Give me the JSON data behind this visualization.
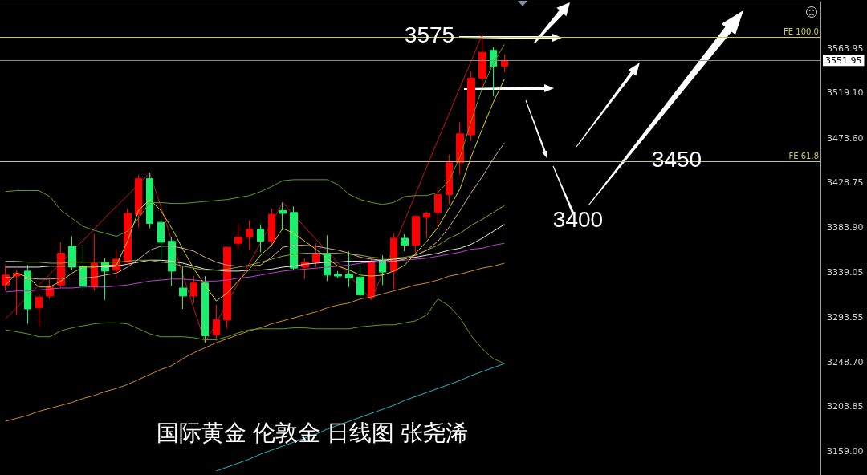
{
  "chart_data": {
    "type": "candlestick",
    "categories": [
      null,
      null,
      null,
      null,
      null,
      null,
      null,
      null,
      null,
      null,
      null,
      null,
      null,
      null,
      null,
      null,
      null,
      null,
      null,
      null,
      null,
      null,
      null,
      null,
      null,
      null,
      null,
      null,
      null,
      null,
      null,
      null,
      null,
      null,
      null,
      null,
      null,
      null,
      null,
      null,
      null,
      null,
      null,
      null,
      null,
      null
    ],
    "ohlc": [
      [
        3326,
        3346,
        3320,
        3336
      ],
      [
        3335,
        3342,
        3296,
        3338
      ],
      [
        3340,
        3346,
        3287,
        3302
      ],
      [
        3303,
        3317,
        3284,
        3314
      ],
      [
        3315,
        3331,
        3312,
        3324
      ],
      [
        3326,
        3369,
        3323,
        3358
      ],
      [
        3365,
        3375,
        3341,
        3344
      ],
      [
        3345,
        3367,
        3320,
        3325
      ],
      [
        3324,
        3377,
        3320,
        3348
      ],
      [
        3349,
        3353,
        3311,
        3340
      ],
      [
        3341,
        3362,
        3333,
        3352
      ],
      [
        3349,
        3403,
        3348,
        3398
      ],
      [
        3397,
        3437,
        3384,
        3433
      ],
      [
        3433,
        3439,
        3383,
        3388
      ],
      [
        3389,
        3394,
        3352,
        3369
      ],
      [
        3370,
        3374,
        3325,
        3340
      ],
      [
        3323,
        3345,
        3302,
        3315
      ],
      [
        3315,
        3335,
        3308,
        3328
      ],
      [
        3328,
        3335,
        3268,
        3275
      ],
      [
        3276,
        3306,
        3270,
        3291
      ],
      [
        3291,
        3365,
        3282,
        3364
      ],
      [
        3368,
        3387,
        3362,
        3374
      ],
      [
        3374,
        3391,
        3361,
        3382
      ],
      [
        3382,
        3387,
        3359,
        3370
      ],
      [
        3370,
        3403,
        3365,
        3397
      ],
      [
        3401,
        3409,
        3381,
        3398
      ],
      [
        3399,
        3405,
        3341,
        3343
      ],
      [
        3344,
        3353,
        3332,
        3349
      ],
      [
        3349,
        3368,
        3344,
        3357
      ],
      [
        3358,
        3376,
        3330,
        3336
      ],
      [
        3337,
        3340,
        3333,
        3335
      ],
      [
        3337,
        3360,
        3324,
        3333
      ],
      [
        3334,
        3346,
        3315,
        3316
      ],
      [
        3314,
        3353,
        3311,
        3349
      ],
      [
        3351,
        3356,
        3326,
        3339
      ],
      [
        3340,
        3378,
        3322,
        3373
      ],
      [
        3373,
        3377,
        3360,
        3366
      ],
      [
        3366,
        3396,
        3356,
        3395
      ],
      [
        3394,
        3400,
        3373,
        3398
      ],
      [
        3399,
        3424,
        3385,
        3417
      ],
      [
        3417,
        3457,
        3407,
        3449
      ],
      [
        3449,
        3490,
        3437,
        3478
      ],
      [
        3477,
        3541,
        3471,
        3534
      ],
      [
        3534,
        3578,
        3526,
        3560
      ],
      [
        3562,
        3565,
        3516,
        3546
      ],
      [
        3546,
        3558,
        3540,
        3551.95
      ]
    ],
    "colors": [
      "#ff0000",
      "#ff0000",
      "#19f06e",
      "#ff0000",
      "#ff0000",
      "#ff0000",
      "#19f06e",
      "#19f06e",
      "#ff0000",
      "#19f06e",
      "#ff0000",
      "#ff0000",
      "#ff0000",
      "#19f06e",
      "#19f06e",
      "#19f06e",
      "#19f06e",
      "#ff0000",
      "#19f06e",
      "#ff0000",
      "#ff0000",
      "#ff0000",
      "#ff0000",
      "#19f06e",
      "#ff0000",
      "#19f06e",
      "#19f06e",
      "#ff0000",
      "#ff0000",
      "#19f06e",
      "#19f06e",
      "#19f06e",
      "#19f06e",
      "#ff0000",
      "#19f06e",
      "#ff0000",
      "#19f06e",
      "#ff0000",
      "#ff0000",
      "#ff0000",
      "#ff0000",
      "#ff0000",
      "#ff0000",
      "#ff0000",
      "#19f06e",
      "#ff0000"
    ],
    "series": [
      {
        "type": "line",
        "color": "#20b8c8",
        "values": [
          null,
          null,
          null,
          null,
          null,
          null,
          null,
          null,
          null,
          null,
          null,
          null,
          null,
          null,
          null,
          null,
          null,
          null,
          null,
          3139,
          3143,
          3147,
          3151,
          3156,
          3160,
          3164,
          3168,
          3172,
          3176,
          3181,
          3185,
          3189,
          3193,
          3197,
          3201,
          3205,
          3210,
          3214,
          3218,
          3222,
          3226,
          3230,
          3235,
          3239,
          3243,
          3247
        ]
      },
      {
        "type": "line",
        "color": "#d08a30",
        "values": [
          3189,
          3192,
          3195,
          3199,
          3202,
          3205,
          3208,
          3212,
          3215,
          3219,
          3222,
          3226,
          3231,
          3236,
          3241,
          3245,
          3252,
          3258,
          3263,
          3268,
          3272,
          3276,
          3280,
          3283,
          3287,
          3290,
          3293,
          3296,
          3299,
          3303,
          3306,
          3308,
          3312,
          3314,
          3317,
          3320,
          3323,
          3326,
          3328,
          3331,
          3335,
          3337,
          3340,
          3343,
          3345,
          3348
        ]
      },
      {
        "type": "line",
        "color": "#c040d0",
        "values": [
          3319,
          3320,
          3320,
          3321,
          3322,
          3323,
          3323,
          3324,
          3324,
          3324,
          3325,
          3326,
          3328,
          3330,
          3331,
          3332,
          3332,
          3331,
          3330,
          3330,
          3331,
          3333,
          3334,
          3336,
          3338,
          3340,
          3341,
          3342,
          3343,
          3344,
          3345,
          3346,
          3348,
          3349,
          3349,
          3350,
          3351,
          3352,
          3353,
          3355,
          3357,
          3359,
          3362,
          3363,
          3366,
          3368
        ]
      },
      {
        "type": "line",
        "color": "#e8e8e8",
        "values": [
          3344,
          3344,
          3344,
          3344,
          3345,
          3345,
          3345,
          3345,
          3345,
          3344,
          3345,
          3347,
          3349,
          3351,
          3351,
          3350,
          3348,
          3345,
          3342,
          3341,
          3340,
          3340,
          3341,
          3341,
          3342,
          3344,
          3345,
          3347,
          3348,
          3349,
          3349,
          3350,
          3350,
          3350,
          3351,
          3352,
          3353,
          3354,
          3356,
          3358,
          3361,
          3363,
          3367,
          3373,
          3380,
          3387
        ]
      },
      {
        "type": "line",
        "color": "#8aa82a",
        "values": [
          3350,
          3350,
          3349,
          3349,
          3348,
          3348,
          3349,
          3349,
          3349,
          3349,
          3349,
          3350,
          3351,
          3351,
          3349,
          3348,
          3345,
          3343,
          3341,
          3341,
          3342,
          3344,
          3346,
          3349,
          3352,
          3355,
          3357,
          3358,
          3358,
          3358,
          3358,
          3357,
          3356,
          3354,
          3353,
          3353,
          3354,
          3356,
          3361,
          3366,
          3373,
          3378,
          3386,
          3392,
          3399,
          3406
        ]
      },
      {
        "type": "line",
        "color": "#5e9c1e",
        "values": [
          3420,
          3421,
          3421,
          3421,
          3415,
          3401,
          3393,
          3385,
          3381,
          3378,
          3375,
          3380,
          3393,
          3409,
          3409,
          3408,
          3408,
          3409,
          3410,
          3411,
          3412,
          3414,
          3416,
          3420,
          3425,
          3431,
          3432,
          3432,
          3432,
          3432,
          3427,
          3417,
          3412,
          3409,
          3407,
          3409,
          3415,
          3416,
          3416,
          3419,
          3431,
          3455,
          3491,
          3524,
          3549,
          3568
        ]
      },
      {
        "type": "line",
        "color": "#5e9c1e",
        "values": [
          3281,
          3279,
          3277,
          3274,
          3274,
          3280,
          3283,
          3285,
          3287,
          3288,
          3288,
          3287,
          3282,
          3277,
          3274,
          3274,
          3274,
          3273,
          3271,
          3271,
          3274,
          3278,
          3281,
          3282,
          3282,
          3282,
          3283,
          3283,
          3282,
          3282,
          3282,
          3282,
          3284,
          3285,
          3286,
          3286,
          3288,
          3290,
          3296,
          3312,
          3305,
          3293,
          3275,
          3262,
          3252,
          3247
        ]
      },
      {
        "type": "line",
        "color": "#d8a89a",
        "values": [
          3334,
          3333,
          3333,
          3332,
          3332,
          3333,
          3333,
          3333,
          3334,
          3336,
          3338,
          3344,
          3352,
          3361,
          3365,
          3365,
          3363,
          3360,
          3354,
          3349,
          3346,
          3345,
          3345,
          3346,
          3354,
          3364,
          3366,
          3366,
          3365,
          3363,
          3361,
          3358,
          3354,
          3352,
          3351,
          3350,
          3352,
          3356,
          3361,
          3370,
          3384,
          3401,
          3419,
          3435,
          3453,
          3469
        ]
      },
      {
        "type": "line",
        "color": "#d8d020",
        "values": [
          3326,
          3338,
          3334,
          3324,
          3324,
          3330,
          3338,
          3344,
          3344,
          3346,
          3346,
          3370,
          3401,
          3412,
          3401,
          3383,
          3362,
          3342,
          3326,
          3310,
          3318,
          3330,
          3342,
          3356,
          3366,
          3383,
          3378,
          3370,
          3362,
          3353,
          3345,
          3341,
          3336,
          3335,
          3336,
          3340,
          3346,
          3358,
          3370,
          3384,
          3403,
          3423,
          3455,
          3483,
          3510,
          3533
        ]
      },
      {
        "type": "line",
        "color": "#c81414",
        "values": [
          3292,
          3303,
          null,
          3326,
          3337,
          null,
          null,
          3371,
          3382,
          3394,
          3405,
          3416,
          null,
          3439,
          3405,
          null,
          3336,
          3302,
          3268,
          null,
          null,
          3328,
          3348,
          null,
          null,
          3409,
          null,
          3384,
          3372,
          3360,
          3348,
          null,
          null,
          3311,
          null,
          null,
          3391,
          3418,
          3445,
          3472,
          3498,
          3525,
          3551,
          3578,
          null,
          null
        ]
      }
    ],
    "ylim": [
      3135,
      3611
    ],
    "yticks": [
      3563.95,
      {
        "value": 3519.1,
        "label": "3519.10"
      },
      {
        "value": 3473.6,
        "label": "3473.60"
      },
      3428.75,
      {
        "value": 3383.9,
        "label": "3383.90"
      },
      3339.05,
      3293.55,
      {
        "value": 3248.7,
        "label": "3248.70"
      },
      3203.85,
      {
        "value": 3159,
        "label": "3159.00"
      }
    ],
    "tick_labels": "y",
    "ref_lines": [
      {
        "axis": "y",
        "value": 3575,
        "label": "FE 100.0",
        "color": "#c8c850"
      },
      {
        "axis": "y",
        "value": 3551.95,
        "label": "3551.95",
        "color": "#8c8c8c"
      },
      {
        "axis": "y",
        "value": 3450,
        "label": "FE 61.8",
        "color": "#c8c850"
      }
    ],
    "annotations": [
      "国际黄金 伦敦金 日线图 张尧浠",
      {
        "text": "3575",
        "y": 3575
      },
      {
        "text": "3450",
        "y": 3450
      },
      "3400"
    ]
  }
}
